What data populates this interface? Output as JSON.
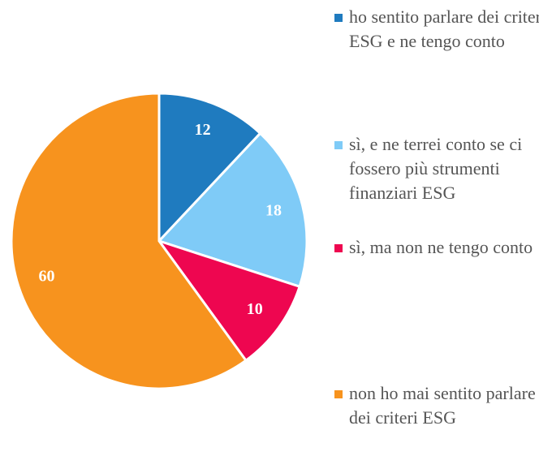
{
  "chart_data": {
    "type": "pie",
    "categories": [
      "ho sentito parlare dei criteri ESG e ne tengo conto",
      "sì, e ne terrei conto se ci fossero più strumenti finanziari ESG",
      "sì, ma non ne tengo conto",
      "non ho mai sentito parlare dei criteri ESG"
    ],
    "values": [
      12,
      18,
      10,
      60
    ],
    "colors": [
      "#1f7bbf",
      "#7fcbf7",
      "#ee0650",
      "#f7931e"
    ]
  }
}
